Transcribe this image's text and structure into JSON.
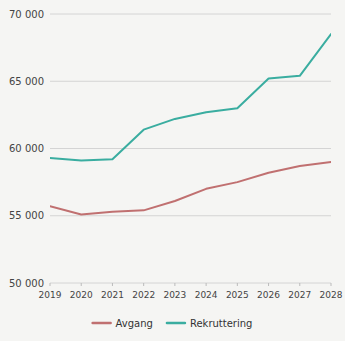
{
  "chart_data": {
    "type": "line",
    "x": [
      2019,
      2020,
      2021,
      2022,
      2023,
      2024,
      2025,
      2026,
      2027,
      2028
    ],
    "series": [
      {
        "name": "Avgang",
        "color": "#c07070",
        "values": [
          55700,
          55100,
          55300,
          55400,
          56100,
          57000,
          57500,
          58200,
          58700,
          59000
        ]
      },
      {
        "name": "Rekruttering",
        "color": "#3aada0",
        "values": [
          59300,
          59100,
          59200,
          61400,
          62200,
          62700,
          63000,
          65200,
          65400,
          68500
        ]
      }
    ],
    "xlim": [
      2019,
      2028
    ],
    "xticks": [
      2019,
      2020,
      2021,
      2022,
      2023,
      2024,
      2025,
      2026,
      2027,
      2028
    ],
    "ylim": [
      50000,
      70000
    ],
    "yticks": [
      {
        "value": 50000,
        "label": "50 000"
      },
      {
        "value": 55000,
        "label": "55 000"
      },
      {
        "value": 60000,
        "label": "60 000"
      },
      {
        "value": 65000,
        "label": "65 000"
      },
      {
        "value": 70000,
        "label": "70 000"
      }
    ],
    "grid": true,
    "legend": "bottom"
  }
}
